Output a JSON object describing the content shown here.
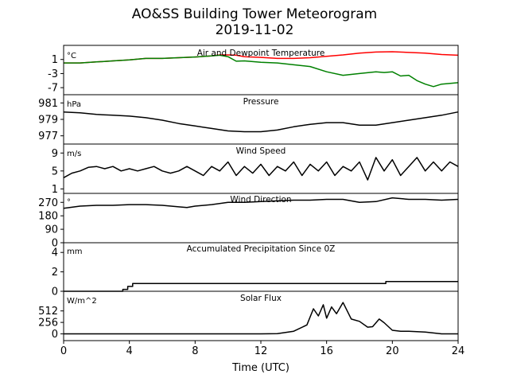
{
  "chart_data": {
    "type": "line",
    "title": "AO&SS Building Tower Meteorogram",
    "subtitle": "2019-11-02",
    "xlabel": "Time (UTC)",
    "xlim": [
      0,
      24
    ],
    "xticks": [
      0,
      4,
      8,
      12,
      16,
      20,
      24
    ],
    "panels": [
      {
        "id": "temp",
        "title": "Air and Dewpoint Temperature",
        "unit": "°C",
        "ylim": [
          -9,
          5
        ],
        "yticks": [
          1,
          -3,
          -7
        ],
        "series": [
          {
            "color": "#ff0000",
            "x": [
              0,
              1,
              2,
              3,
              4,
              5,
              6,
              7,
              8,
              9,
              9.5,
              10,
              10.5,
              11,
              12,
              13,
              14,
              15,
              16,
              17,
              18,
              19,
              20,
              21,
              22,
              23,
              24
            ],
            "y": [
              0.0,
              0.0,
              0.3,
              0.6,
              0.9,
              1.3,
              1.3,
              1.5,
              1.7,
              2.0,
              2.3,
              2.3,
              2.2,
              1.8,
              1.6,
              1.3,
              1.3,
              1.5,
              1.9,
              2.3,
              2.8,
              3.1,
              3.2,
              3.0,
              2.8,
              2.4,
              2.2
            ]
          },
          {
            "color": "#008000",
            "x": [
              0,
              1,
              2,
              3,
              4,
              5,
              6,
              7,
              8,
              9,
              9.5,
              10,
              10.5,
              11,
              12,
              13,
              14,
              15,
              16,
              17,
              18,
              19,
              19.5,
              20,
              20.5,
              21,
              21.5,
              22,
              22.5,
              23,
              24
            ],
            "y": [
              0.0,
              0.0,
              0.3,
              0.6,
              0.9,
              1.3,
              1.3,
              1.5,
              1.7,
              2.0,
              2.2,
              1.8,
              0.5,
              0.6,
              0.2,
              0.0,
              -0.5,
              -1.0,
              -2.5,
              -3.5,
              -3.0,
              -2.5,
              -2.7,
              -2.5,
              -3.7,
              -3.5,
              -5.0,
              -6.0,
              -6.7,
              -6.0,
              -5.6
            ]
          }
        ]
      },
      {
        "id": "pressure",
        "title": "Pressure",
        "unit": "hPa",
        "ylim": [
          976,
          982
        ],
        "yticks": [
          981,
          979,
          977
        ],
        "series": [
          {
            "color": "#000000",
            "x": [
              0,
              1,
              2,
              3,
              4,
              5,
              6,
              7,
              8,
              9,
              10,
              11,
              12,
              13,
              14,
              15,
              16,
              17,
              18,
              19,
              20,
              21,
              22,
              23,
              24
            ],
            "y": [
              979.9,
              979.8,
              979.6,
              979.5,
              979.4,
              979.2,
              978.9,
              978.5,
              978.2,
              977.9,
              977.6,
              977.5,
              977.5,
              977.7,
              978.1,
              978.4,
              978.6,
              978.6,
              978.3,
              978.3,
              978.6,
              978.9,
              979.2,
              979.5,
              979.9
            ]
          }
        ]
      },
      {
        "id": "wind_speed",
        "title": "Wind Speed",
        "unit": "m/s",
        "ylim": [
          0,
          11
        ],
        "yticks": [
          9,
          5,
          1
        ],
        "series": [
          {
            "color": "#000000",
            "x": [
              0,
              0.5,
              1,
              1.5,
              2,
              2.5,
              3,
              3.5,
              4,
              4.5,
              5,
              5.5,
              6,
              6.5,
              7,
              7.5,
              8,
              8.5,
              9,
              9.5,
              10,
              10.5,
              11,
              11.5,
              12,
              12.5,
              13,
              13.5,
              14,
              14.5,
              15,
              15.5,
              16,
              16.5,
              17,
              17.5,
              18,
              18.5,
              19,
              19.5,
              20,
              20.5,
              21,
              21.5,
              22,
              22.5,
              23,
              23.5,
              24
            ],
            "y": [
              3.5,
              4.5,
              5.0,
              5.8,
              6.0,
              5.5,
              6.0,
              5.0,
              5.5,
              5.0,
              5.5,
              6.0,
              5.0,
              4.5,
              5.0,
              6.0,
              5.0,
              4.0,
              6.0,
              5.0,
              7.0,
              4.0,
              6.0,
              4.5,
              6.5,
              4.0,
              6.0,
              5.0,
              7.0,
              4.0,
              6.5,
              5.0,
              7.0,
              4.0,
              6.0,
              5.0,
              7.0,
              3.0,
              8.0,
              5.0,
              7.5,
              4.0,
              6.0,
              8.0,
              5.0,
              7.0,
              5.0,
              7.0,
              6.0
            ]
          }
        ]
      },
      {
        "id": "wind_dir",
        "title": "Wind Direction",
        "unit": "°",
        "ylim": [
          0,
          330
        ],
        "yticks": [
          270,
          180,
          90,
          0
        ],
        "series": [
          {
            "color": "#000000",
            "x": [
              0,
              1,
              2,
              3,
              4,
              5,
              6,
              7,
              7.5,
              8,
              9,
              10,
              11,
              12,
              13,
              14,
              15,
              16,
              17,
              18,
              19,
              20,
              21,
              22,
              23,
              24
            ],
            "y": [
              230,
              245,
              250,
              250,
              255,
              255,
              250,
              240,
              235,
              245,
              255,
              270,
              270,
              275,
              280,
              285,
              285,
              290,
              290,
              270,
              275,
              300,
              290,
              290,
              285,
              290
            ]
          }
        ]
      },
      {
        "id": "precip",
        "title": "Accumulated Precipitation Since 0Z",
        "unit": "mm",
        "ylim": [
          0,
          5
        ],
        "yticks": [
          4,
          2,
          0
        ],
        "series": [
          {
            "color": "#000000",
            "x": [
              0,
              3.6,
              3.6,
              3.9,
              3.9,
              4.2,
              4.2,
              19.6,
              19.6,
              24
            ],
            "y": [
              0,
              0,
              0.2,
              0.2,
              0.5,
              0.5,
              0.8,
              0.8,
              1.0,
              1.0
            ]
          }
        ]
      },
      {
        "id": "solar",
        "title": "Solar Flux",
        "unit": "W/m^2",
        "ylim": [
          -150,
          950
        ],
        "yticks": [
          512,
          256,
          0
        ],
        "series": [
          {
            "color": "#000000",
            "x": [
              0,
              12,
              13,
              14,
              14.8,
              15.2,
              15.5,
              15.8,
              16.0,
              16.3,
              16.6,
              17.0,
              17.5,
              18.0,
              18.5,
              18.8,
              19.2,
              19.5,
              20.0,
              20.5,
              21,
              22,
              23,
              24
            ],
            "y": [
              0,
              0,
              5,
              60,
              200,
              560,
              400,
              650,
              350,
              600,
              450,
              700,
              330,
              280,
              150,
              160,
              330,
              250,
              80,
              60,
              60,
              40,
              0,
              0
            ]
          }
        ]
      }
    ]
  }
}
